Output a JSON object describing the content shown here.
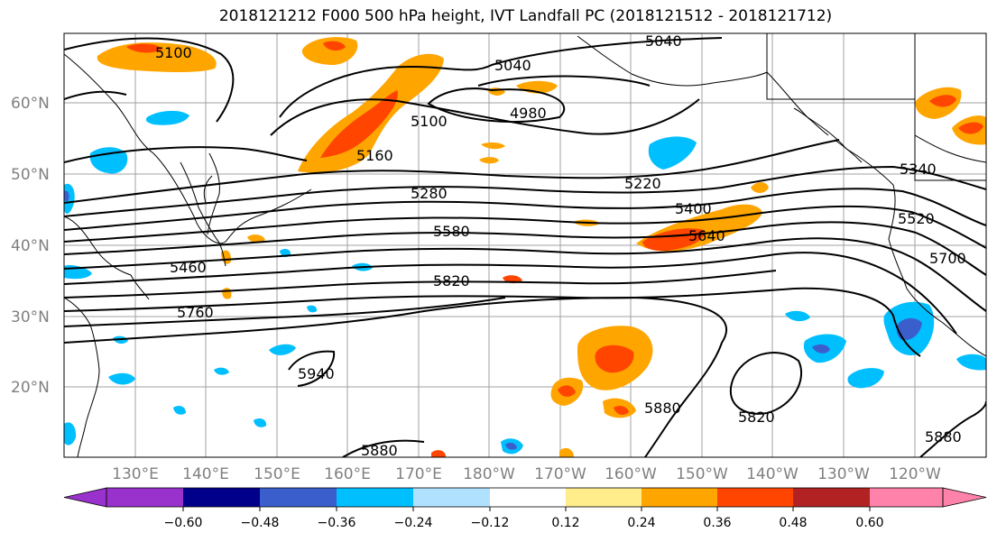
{
  "title": "2018121212 F000 500 hPa height, IVT Landfall PC (2018121512 - 2018121712)",
  "lon_labels": [
    "130°E",
    "140°E",
    "150°E",
    "160°E",
    "170°E",
    "180°W",
    "170°W",
    "160°W",
    "150°W",
    "140°W",
    "130°W",
    "120°W"
  ],
  "lat_labels": [
    "60°N",
    "50°N",
    "40°N",
    "30°N",
    "20°N"
  ],
  "colorbar": {
    "colors": [
      "#9932cc",
      "#00008b",
      "#3a5fcd",
      "#00bfff",
      "#b0e2ff",
      "#ffffff",
      "#ffec8b",
      "#ffa500",
      "#ff4500",
      "#b22222",
      "#ff82ab"
    ],
    "labels": [
      "−0.60",
      "−0.48",
      "−0.36",
      "−0.24",
      "−0.12",
      "0.12",
      "0.24",
      "0.36",
      "0.48",
      "0.60"
    ]
  },
  "contour_labels": [
    "5100",
    "5040",
    "5040",
    "4980",
    "5100",
    "5160",
    "5280",
    "5220",
    "5340",
    "5400",
    "5520",
    "5580",
    "5640",
    "5460",
    "5700",
    "5820",
    "5760",
    "5940",
    "5880",
    "5820",
    "5880",
    "5880"
  ]
}
